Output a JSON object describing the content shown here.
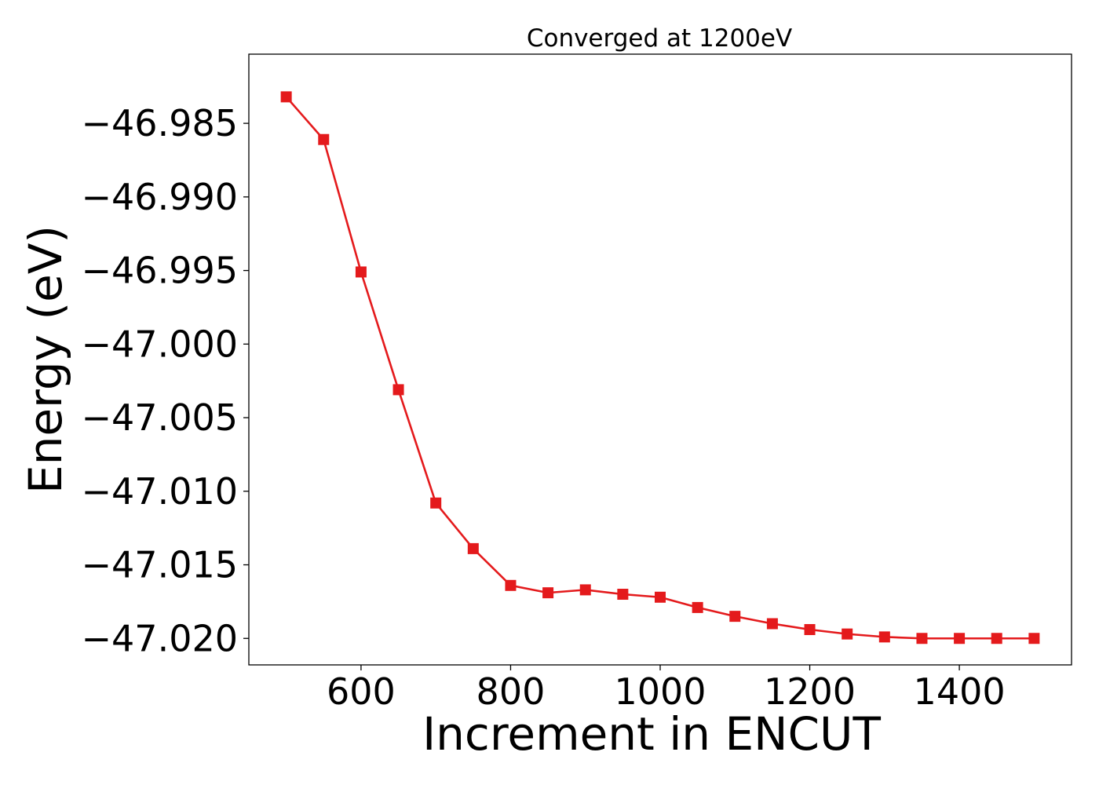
{
  "chart_data": {
    "type": "line",
    "title": "Converged at 1200eV",
    "xlabel": "Increment in ENCUT",
    "ylabel": "Energy (eV)",
    "xlim": [
      450,
      1550
    ],
    "ylim": [
      -47.0218,
      -46.9803
    ],
    "xticks": [
      600,
      800,
      1000,
      1200,
      1400
    ],
    "xtick_labels": [
      "600",
      "800",
      "1000",
      "1200",
      "1400"
    ],
    "yticks": [
      -46.985,
      -46.99,
      -46.995,
      -47.0,
      -47.005,
      -47.01,
      -47.015,
      -47.02
    ],
    "ytick_labels": [
      "−46.985",
      "−46.990",
      "−46.995",
      "−47.000",
      "−47.005",
      "−47.010",
      "−47.015",
      "−47.020"
    ],
    "grid": false,
    "series": [
      {
        "color": "#e41a1c",
        "marker": "square",
        "x": [
          500,
          550,
          600,
          650,
          700,
          750,
          800,
          850,
          900,
          950,
          1000,
          1050,
          1100,
          1150,
          1200,
          1250,
          1300,
          1350,
          1400,
          1450,
          1500
        ],
        "y": [
          -46.9832,
          -46.9861,
          -46.9951,
          -47.0031,
          -47.0108,
          -47.0139,
          -47.0164,
          -47.0169,
          -47.0167,
          -47.017,
          -47.0172,
          -47.0179,
          -47.0185,
          -47.019,
          -47.0194,
          -47.0197,
          -47.0199,
          -47.02,
          -47.02,
          -47.02,
          -47.02
        ]
      }
    ]
  }
}
